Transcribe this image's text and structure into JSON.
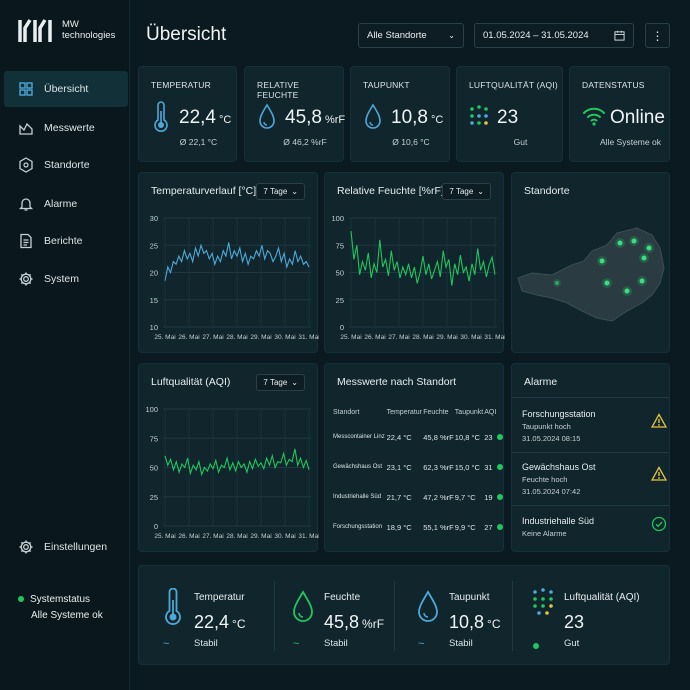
{
  "brand": {
    "line1": "MW",
    "line2": "technologies"
  },
  "nav": [
    {
      "label": "Übersicht",
      "icon": "grid-icon"
    },
    {
      "label": "Messwerte",
      "icon": "chart-icon"
    },
    {
      "label": "Standorte",
      "icon": "location-icon"
    },
    {
      "label": "Alarme",
      "icon": "bell-icon"
    },
    {
      "label": "Berichte",
      "icon": "report-icon"
    },
    {
      "label": "System",
      "icon": "gear-icon"
    }
  ],
  "settings_label": "Einstellungen",
  "system_status": {
    "label": "Systemstatus",
    "value": "Alle Systeme ok"
  },
  "header": {
    "title": "Übersicht",
    "location_select": "Alle Standorte",
    "date_range": "01.05.2024  –  31.05.2024"
  },
  "kpis": [
    {
      "label": "TEMPERATUR",
      "value": "22,4",
      "unit": "°C",
      "sub": "Ø 22,1 °C"
    },
    {
      "label": "RELATIVE FEUCHTE",
      "value": "45,8",
      "unit": "%rF",
      "sub": "Ø 46,2 %rF"
    },
    {
      "label": "TAUPUNKT",
      "value": "10,8",
      "unit": "°C",
      "sub": "Ø 10,6 °C"
    },
    {
      "label": "LUFTQUALITÄT (AQI)",
      "value": "23",
      "unit": "",
      "sub": "Gut"
    },
    {
      "label": "DATENSTATUS",
      "value": "Online",
      "unit": "",
      "sub": "Alle Systeme ok"
    }
  ],
  "chart_data": [
    {
      "type": "line",
      "title": "Temperaturverlauf [°C]",
      "range": "7 Tage",
      "xticks": [
        "25. Mai",
        "26. Mai",
        "27. Mai",
        "28. Mai",
        "29. Mai",
        "30. Mai",
        "31. Mai"
      ],
      "yticks": [
        10,
        15,
        20,
        25,
        30
      ],
      "ylim": [
        10,
        30
      ],
      "color": "#4fa8d8",
      "series": [
        {
          "values": [
            18.5,
            21,
            20,
            22,
            21.5,
            23,
            22,
            24,
            22.5,
            23.5,
            22,
            24.5,
            23,
            25,
            23.5,
            24,
            22.5,
            23.5,
            21.5,
            23,
            22,
            24,
            23,
            25.5,
            22.5,
            24,
            23,
            24.5,
            22,
            23.5,
            21.5,
            23,
            22.5,
            24,
            23,
            25,
            22.5,
            24,
            23.5,
            22,
            23,
            24.5,
            22,
            23.5,
            21,
            22.5,
            21.5,
            24,
            22,
            23,
            21.5,
            22,
            21
          ]
        }
      ]
    },
    {
      "type": "line",
      "title": "Relative Feuchte [%rF]",
      "range": "7 Tage",
      "xticks": [
        "25. Mai",
        "26. Mai",
        "27. Mai",
        "28. Mai",
        "29. Mai",
        "30. Mai",
        "31. Mai"
      ],
      "yticks": [
        0,
        25,
        50,
        75,
        100
      ],
      "ylim": [
        0,
        100
      ],
      "color": "#22c55e",
      "series": [
        {
          "values": [
            88,
            62,
            75,
            48,
            60,
            52,
            68,
            45,
            58,
            50,
            80,
            55,
            62,
            47,
            70,
            52,
            60,
            45,
            55,
            48,
            58,
            45,
            55,
            40,
            50,
            65,
            48,
            58,
            44,
            52,
            60,
            46,
            70,
            55,
            62,
            38,
            58,
            48,
            66,
            50,
            55,
            42,
            58,
            48,
            72,
            52,
            60,
            46,
            57,
            64,
            48
          ]
        }
      ]
    },
    {
      "type": "line",
      "title": "Luftqualität (AQI)",
      "range": "7 Tage",
      "xticks": [
        "25. Mai",
        "26. Mai",
        "27. Mai",
        "28. Mai",
        "29. Mai",
        "30. Mai",
        "31. Mai"
      ],
      "yticks": [
        0,
        25,
        50,
        75,
        100
      ],
      "ylim": [
        0,
        100
      ],
      "color": "#22c55e",
      "series": [
        {
          "values": [
            60,
            52,
            57,
            48,
            55,
            46,
            53,
            50,
            58,
            45,
            52,
            48,
            55,
            44,
            50,
            47,
            53,
            49,
            56,
            46,
            52,
            50,
            58,
            48,
            54,
            47,
            55,
            50,
            53,
            46,
            55,
            49,
            57,
            51,
            54,
            49,
            58,
            52,
            60,
            50,
            55,
            54,
            62,
            52,
            57,
            55,
            66,
            52,
            58,
            50,
            56,
            48
          ]
        }
      ]
    }
  ],
  "map": {
    "title": "Standorte"
  },
  "table": {
    "title": "Messwerte nach Standort",
    "headers": [
      "Standort",
      "Temperatur",
      "Feuchte",
      "Taupunkt",
      "AQI"
    ],
    "rows": [
      {
        "name": "Messcontainer Linz",
        "temp": "22,4 °C",
        "hum": "45,8 %rF",
        "dew": "10,8 °C",
        "aqi": "23"
      },
      {
        "name": "Gewächshaus Ost",
        "temp": "23,1 °C",
        "hum": "62,3 %rF",
        "dew": "15,0 °C",
        "aqi": "31"
      },
      {
        "name": "Industriehalle Süd",
        "temp": "21,7 °C",
        "hum": "47,2 %rF",
        "dew": "9,7 °C",
        "aqi": "19"
      },
      {
        "name": "Forschungsstation",
        "temp": "18,9 °C",
        "hum": "55,1 %rF",
        "dew": "9,9 °C",
        "aqi": "27"
      }
    ]
  },
  "alarms": {
    "title": "Alarme",
    "items": [
      {
        "name": "Forschungsstation",
        "detail": "Taupunkt hoch",
        "time": "31.05.2024 08:15",
        "icon": "warning-icon"
      },
      {
        "name": "Gewächshaus Ost",
        "detail": "Feuchte hoch",
        "time": "31.05.2024 07:42",
        "icon": "warning-icon"
      },
      {
        "name": "Industriehalle Süd",
        "detail": "Keine Alarme",
        "time": "",
        "icon": "check-icon"
      }
    ]
  },
  "bottom": [
    {
      "label": "Temperatur",
      "value": "22,4",
      "unit": "°C",
      "sub": "Stabil"
    },
    {
      "label": "Feuchte",
      "value": "45,8",
      "unit": "%rF",
      "sub": "Stabil"
    },
    {
      "label": "Taupunkt",
      "value": "10,8",
      "unit": "°C",
      "sub": "Stabil"
    },
    {
      "label": "Luftqualität (AQI)",
      "value": "23",
      "unit": "",
      "sub": "Gut"
    }
  ]
}
